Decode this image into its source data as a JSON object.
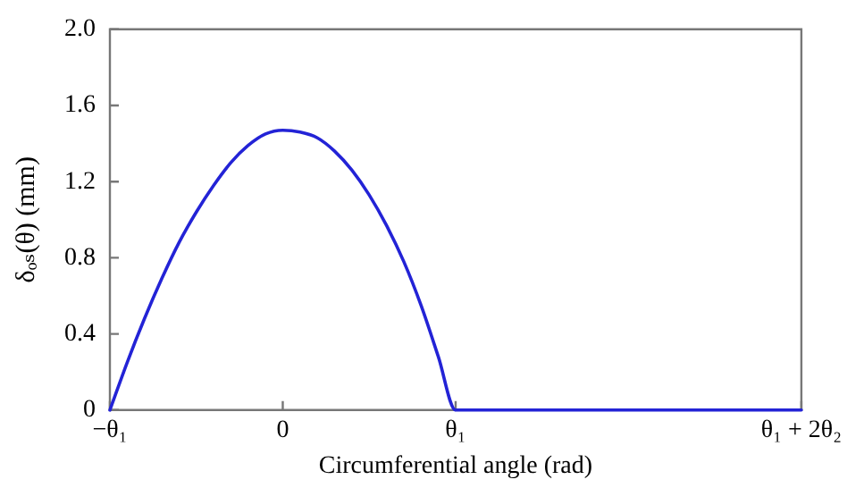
{
  "chart_data": {
    "type": "line",
    "xlabel": "Circumferential angle (rad)",
    "ylabel": "δₒₛ(θ) (mm)",
    "categories": [
      "−θ₁",
      null,
      null,
      null,
      null,
      null,
      null,
      null,
      null,
      null,
      "0",
      null,
      null,
      null,
      null,
      null,
      null,
      null,
      null,
      null,
      "θ₁",
      null,
      null,
      null,
      null,
      null,
      null,
      null,
      null,
      null,
      null,
      null,
      null,
      null,
      null,
      null,
      null,
      null,
      null,
      null,
      "θ₁ + 2θ₂"
    ],
    "series": [
      {
        "color": "#2323d6",
        "values": [
          0,
          0.25,
          0.48,
          0.69,
          0.88,
          1.04,
          1.18,
          1.3,
          1.39,
          1.45,
          1.47,
          1.46,
          1.43,
          1.36,
          1.26,
          1.13,
          0.97,
          0.78,
          0.55,
          0.28,
          0,
          0,
          0,
          0,
          0,
          0,
          0,
          0,
          0,
          0,
          0,
          0,
          0,
          0,
          0,
          0,
          0,
          0,
          0,
          0,
          0
        ]
      }
    ],
    "ylim": [
      0,
      2
    ],
    "yticks": [
      0,
      0.4,
      0.8,
      1.2,
      1.6,
      {
        "value": 2,
        "label": "2.0"
      }
    ],
    "grid": false,
    "legend": false,
    "marker": "none",
    "line_style": "solid"
  }
}
